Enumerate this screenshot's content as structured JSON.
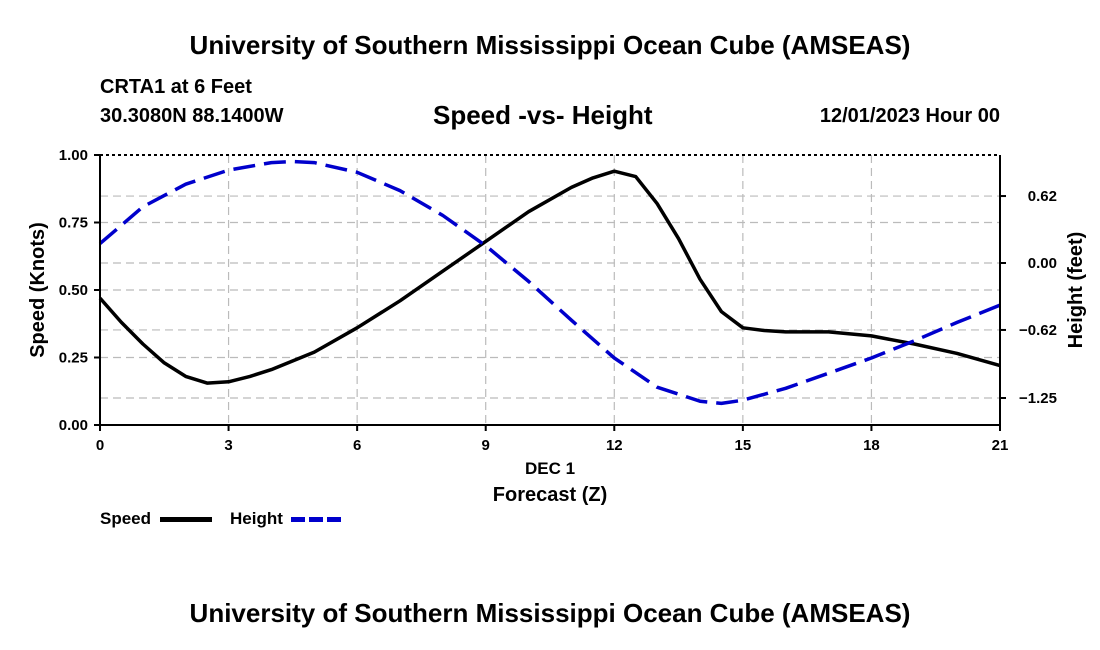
{
  "header": {
    "title": "University of Southern Mississippi Ocean Cube (AMSEAS)",
    "station": "CRTA1 at 6 Feet",
    "coords": "30.3080N  88.1400W",
    "subtitle": "Speed -vs- Height",
    "timestamp": "12/01/2023 Hour 00"
  },
  "footer": {
    "title": "University of Southern Mississippi Ocean Cube (AMSEAS)"
  },
  "legend": {
    "speed_label": "Speed",
    "height_label": "Height"
  },
  "chart_data": {
    "type": "line",
    "title": "Speed -vs- Height",
    "xlabel": "Forecast (Z)",
    "xlabel_date": "DEC 1",
    "ylabel_left": "Speed (Knots)",
    "ylabel_right": "Height (feet)",
    "xlim": [
      0,
      21
    ],
    "ylim_left": [
      0,
      1
    ],
    "ylim_right": [
      -1.5,
      1.0
    ],
    "x_ticks": [
      0,
      3,
      6,
      9,
      12,
      15,
      18,
      21
    ],
    "x_tick_labels": [
      "0",
      "3",
      "6",
      "9",
      "12",
      "15",
      "18",
      "21"
    ],
    "y_left_ticks": [
      0,
      0.25,
      0.5,
      0.75,
      1.0
    ],
    "y_left_tick_labels": [
      "0.00",
      "0.25",
      "0.50",
      "0.75",
      "1.00"
    ],
    "y_right_ticks": [
      0.62,
      0,
      -0.62,
      -1.25
    ],
    "y_right_tick_labels": [
      "0.62",
      "0.00",
      "−0.62",
      "−1.25"
    ],
    "grid": true,
    "legend_position": "bottom-left",
    "colors": {
      "speed": "#000000",
      "height": "#0000cc",
      "grid": "#bbbbbb"
    },
    "series": [
      {
        "name": "Speed",
        "axis": "left",
        "style": "solid",
        "x": [
          0,
          0.5,
          1,
          1.5,
          2,
          2.5,
          3,
          3.5,
          4,
          5,
          6,
          7,
          8,
          9,
          10,
          11,
          11.5,
          12,
          12.5,
          13,
          13.5,
          14,
          14.5,
          15,
          15.5,
          16,
          17,
          18,
          19,
          20,
          21
        ],
        "values": [
          0.47,
          0.38,
          0.3,
          0.23,
          0.18,
          0.155,
          0.16,
          0.18,
          0.205,
          0.27,
          0.36,
          0.46,
          0.57,
          0.68,
          0.79,
          0.88,
          0.915,
          0.94,
          0.92,
          0.82,
          0.69,
          0.54,
          0.42,
          0.36,
          0.35,
          0.345,
          0.345,
          0.33,
          0.3,
          0.265,
          0.22
        ]
      },
      {
        "name": "Height",
        "axis": "right",
        "style": "dashed",
        "x": [
          0,
          1,
          2,
          3,
          4,
          4.5,
          5,
          6,
          7,
          8,
          9,
          10,
          11,
          12,
          13,
          14,
          14.5,
          15,
          16,
          17,
          18,
          19,
          20,
          21
        ],
        "values": [
          0.18,
          0.52,
          0.73,
          0.86,
          0.93,
          0.94,
          0.93,
          0.84,
          0.67,
          0.44,
          0.16,
          -0.17,
          -0.53,
          -0.88,
          -1.15,
          -1.28,
          -1.3,
          -1.27,
          -1.16,
          -1.02,
          -0.88,
          -0.72,
          -0.55,
          -0.39
        ]
      }
    ]
  }
}
